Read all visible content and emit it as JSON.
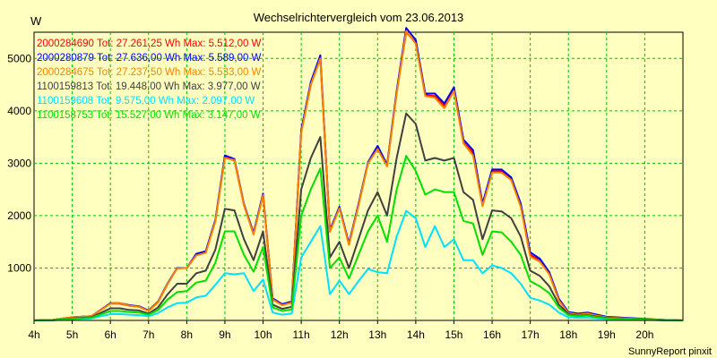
{
  "chart_data": {
    "type": "line",
    "title": "Wechselrichtervergleich vom 23.06.2013",
    "ylabel": "W",
    "xlabel": "",
    "footer": "SunnyReport pinxit",
    "ylim": [
      0,
      5500
    ],
    "xlim": [
      4,
      21
    ],
    "yticks": [
      1000,
      2000,
      3000,
      4000,
      5000
    ],
    "xticks": [
      {
        "v": 4,
        "label": "4h"
      },
      {
        "v": 5,
        "label": "5h"
      },
      {
        "v": 6,
        "label": "6h"
      },
      {
        "v": 7,
        "label": "7h"
      },
      {
        "v": 8,
        "label": "8h"
      },
      {
        "v": 9,
        "label": "9h"
      },
      {
        "v": 10,
        "label": "10h"
      },
      {
        "v": 11,
        "label": "11h"
      },
      {
        "v": 12,
        "label": "12h"
      },
      {
        "v": 13,
        "label": "13h"
      },
      {
        "v": 14,
        "label": "14h"
      },
      {
        "v": 15,
        "label": "15h"
      },
      {
        "v": 16,
        "label": "16h"
      },
      {
        "v": 17,
        "label": "17h"
      },
      {
        "v": 18,
        "label": "18h"
      },
      {
        "v": 19,
        "label": "19h"
      },
      {
        "v": 20,
        "label": "20h"
      }
    ],
    "grid": true,
    "legend_position": "top-left",
    "x": [
      4.0,
      4.5,
      5.0,
      5.5,
      6.0,
      6.25,
      6.5,
      6.75,
      7.0,
      7.25,
      7.5,
      7.75,
      8.0,
      8.25,
      8.5,
      8.75,
      9.0,
      9.25,
      9.5,
      9.75,
      10.0,
      10.25,
      10.5,
      10.75,
      11.0,
      11.25,
      11.5,
      11.75,
      12.0,
      12.25,
      12.5,
      12.75,
      13.0,
      13.25,
      13.5,
      13.75,
      14.0,
      14.25,
      14.5,
      14.75,
      15.0,
      15.25,
      15.5,
      15.75,
      16.0,
      16.25,
      16.5,
      16.75,
      17.0,
      17.25,
      17.5,
      17.75,
      18.0,
      18.25,
      18.5,
      18.75,
      19.0,
      19.5,
      20.0,
      20.5,
      21.0
    ],
    "series": [
      {
        "name": "2000284690",
        "legend": "2000284690 Tot: 27.261,25 Wh Max: 5.512,00 W",
        "color": "#ff0000",
        "values": [
          0,
          10,
          60,
          80,
          320,
          320,
          280,
          260,
          180,
          350,
          700,
          1000,
          1000,
          1250,
          1300,
          1900,
          3120,
          3050,
          2200,
          1650,
          2400,
          400,
          300,
          350,
          3600,
          4500,
          5000,
          1700,
          2150,
          1450,
          2200,
          3000,
          3300,
          2950,
          4350,
          5500,
          5300,
          4300,
          4280,
          4100,
          4400,
          3400,
          3200,
          2200,
          2850,
          2850,
          2700,
          2200,
          1250,
          1150,
          900,
          400,
          150,
          120,
          140,
          100,
          60,
          40,
          20,
          10,
          0
        ]
      },
      {
        "name": "2000280879",
        "legend": "2000280879 Tot: 27.636,00 Wh Max: 5.589,00 W",
        "color": "#0000ff",
        "values": [
          0,
          10,
          60,
          80,
          330,
          330,
          290,
          270,
          190,
          360,
          710,
          1000,
          1000,
          1270,
          1320,
          1920,
          3150,
          3080,
          2220,
          1670,
          2420,
          420,
          310,
          360,
          3630,
          4550,
          5060,
          1720,
          2170,
          1470,
          2220,
          3020,
          3330,
          2970,
          4380,
          5580,
          5350,
          4330,
          4330,
          4140,
          4450,
          3450,
          3250,
          2230,
          2880,
          2880,
          2730,
          2230,
          1300,
          1180,
          920,
          410,
          160,
          130,
          150,
          110,
          70,
          50,
          30,
          10,
          0
        ]
      },
      {
        "name": "2000284675",
        "legend": "2000284675 Tot: 27.237,50 Wh Max: 5.533,00 W",
        "color": "#ff8000",
        "values": [
          0,
          10,
          60,
          80,
          320,
          330,
          280,
          260,
          180,
          350,
          700,
          990,
          1000,
          1240,
          1290,
          1890,
          3100,
          3060,
          2200,
          1640,
          2390,
          400,
          290,
          340,
          3580,
          4500,
          5000,
          1690,
          2140,
          1440,
          2190,
          3000,
          3270,
          2940,
          4330,
          5520,
          5280,
          4280,
          4250,
          4050,
          4380,
          3380,
          3150,
          2180,
          2820,
          2820,
          2680,
          2170,
          1220,
          1120,
          880,
          380,
          140,
          110,
          130,
          90,
          60,
          40,
          20,
          10,
          0
        ]
      },
      {
        "name": "1100159813",
        "legend": "1100159813 Tot: 19.448,00 Wh Max: 3.977,00 W",
        "color": "#404040",
        "values": [
          0,
          5,
          40,
          60,
          230,
          230,
          200,
          190,
          130,
          250,
          500,
          700,
          700,
          900,
          950,
          1350,
          2130,
          2100,
          1550,
          1150,
          1700,
          300,
          220,
          260,
          2500,
          3100,
          3500,
          1200,
          1500,
          1000,
          1550,
          2100,
          2450,
          2000,
          3100,
          3950,
          3750,
          3050,
          3100,
          3050,
          3100,
          2450,
          2300,
          1550,
          2100,
          2080,
          1950,
          1600,
          950,
          850,
          650,
          300,
          120,
          90,
          100,
          70,
          50,
          30,
          15,
          5,
          0
        ]
      },
      {
        "name": "1100159608",
        "legend": "1100159608 Tot: 9.575,00 Wh Max: 2.097,00 W",
        "color": "#00e0ff",
        "values": [
          0,
          5,
          25,
          40,
          120,
          120,
          110,
          100,
          80,
          140,
          250,
          330,
          340,
          440,
          470,
          680,
          900,
          880,
          900,
          560,
          780,
          150,
          110,
          130,
          1200,
          1500,
          1800,
          500,
          760,
          500,
          750,
          980,
          920,
          900,
          1600,
          2090,
          1950,
          1400,
          1800,
          1400,
          1550,
          1150,
          1150,
          900,
          1050,
          1000,
          900,
          700,
          430,
          380,
          300,
          150,
          60,
          50,
          50,
          40,
          30,
          20,
          10,
          5,
          0
        ]
      },
      {
        "name": "1100158753",
        "legend": "1100158753 Tot: 15.527,00 Wh Max: 3.147,00 W",
        "color": "#00e000",
        "values": [
          0,
          5,
          30,
          50,
          180,
          180,
          160,
          150,
          110,
          200,
          400,
          540,
          560,
          720,
          760,
          1100,
          1700,
          1700,
          1250,
          930,
          1400,
          250,
          180,
          210,
          2000,
          2500,
          2900,
          1000,
          1200,
          800,
          1250,
          1700,
          2000,
          1500,
          2500,
          3140,
          2850,
          2400,
          2500,
          2450,
          2450,
          1900,
          1850,
          1250,
          1700,
          1680,
          1500,
          1250,
          750,
          650,
          520,
          240,
          100,
          80,
          90,
          60,
          40,
          25,
          12,
          5,
          0
        ]
      }
    ]
  }
}
